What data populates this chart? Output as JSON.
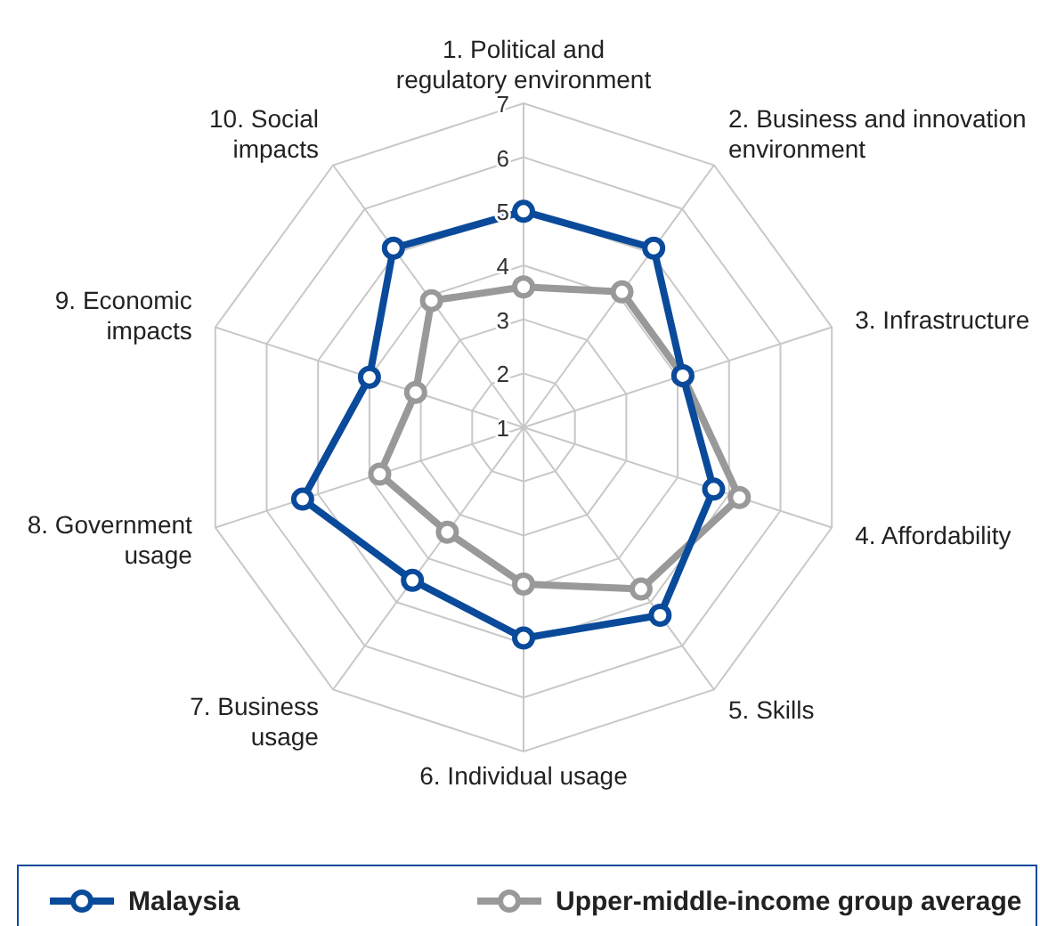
{
  "chart_data": {
    "type": "radar",
    "categories": [
      "1. Political and\nregulatory environment",
      "2. Business and innovation\nenvironment",
      "3. Infrastructure",
      "4. Affordability",
      "5. Skills",
      "6. Individual usage",
      "7. Business\nusage",
      "8. Government\nusage",
      "9. Economic\nimpacts",
      "10. Social\nimpacts"
    ],
    "series": [
      {
        "name": "Malaysia",
        "color": "#0a4a9a",
        "values": [
          5.0,
          5.1,
          4.1,
          4.7,
          5.3,
          4.9,
          4.5,
          5.3,
          4.0,
          5.1
        ]
      },
      {
        "name": "Upper-middle-income group average",
        "color": "#999999",
        "values": [
          3.6,
          4.1,
          4.1,
          5.2,
          4.7,
          3.9,
          3.4,
          3.8,
          3.1,
          3.9
        ]
      }
    ],
    "ylim": [
      1,
      7
    ],
    "yticks": [
      1,
      2,
      3,
      4,
      5,
      6,
      7
    ],
    "grid": true,
    "legend": "bottom",
    "marker": "circle",
    "line_style": "solid"
  }
}
